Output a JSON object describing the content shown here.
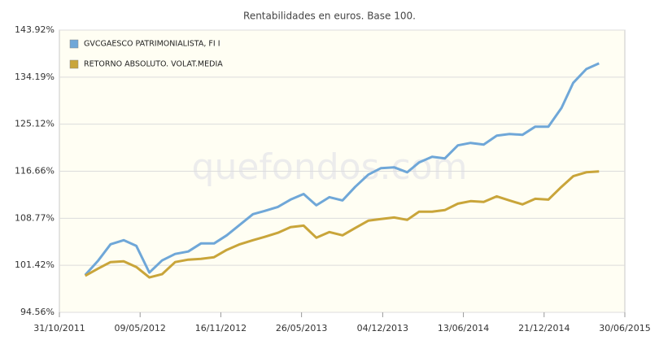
{
  "chart_data": {
    "type": "line",
    "title": "Rentabilidades en euros. Base 100.",
    "watermark": "quefondos.com",
    "yscale": "log",
    "grid": true,
    "legend": "top-left",
    "x": [
      "31/12/2011",
      "31/01/2012",
      "29/02/2012",
      "31/03/2012",
      "30/04/2012",
      "31/05/2012",
      "30/06/2012",
      "31/07/2012",
      "31/08/2012",
      "30/09/2012",
      "31/10/2012",
      "30/11/2012",
      "31/12/2012",
      "31/01/2013",
      "28/02/2013",
      "31/03/2013",
      "30/04/2013",
      "31/05/2013",
      "30/06/2013",
      "31/07/2013",
      "31/08/2013",
      "30/09/2013",
      "31/10/2013",
      "30/11/2013",
      "31/12/2013",
      "31/01/2014",
      "28/02/2014",
      "31/03/2014",
      "30/04/2014",
      "31/05/2014",
      "30/06/2014",
      "31/07/2014",
      "31/08/2014",
      "30/09/2014",
      "31/10/2014",
      "30/11/2014",
      "31/12/2014",
      "31/01/2015",
      "28/02/2015",
      "31/03/2015",
      "30/04/2015"
    ],
    "xlim": [
      "31/10/2011",
      "30/06/2015"
    ],
    "xticks": [
      "31/10/2011",
      "09/05/2012",
      "16/11/2012",
      "26/05/2013",
      "04/12/2013",
      "13/06/2014",
      "21/12/2014",
      "30/06/2015"
    ],
    "ylim": [
      94.56,
      143.92
    ],
    "yticks": [
      {
        "value": 94.56,
        "label": "94.56%"
      },
      {
        "value": 101.42,
        "label": "101.42%"
      },
      {
        "value": 108.77,
        "label": "108.77%"
      },
      {
        "value": 116.66,
        "label": "116.66%"
      },
      {
        "value": 125.12,
        "label": "125.12%"
      },
      {
        "value": 134.19,
        "label": "134.19%"
      },
      {
        "value": 143.92,
        "label": "143.92%"
      }
    ],
    "series": [
      {
        "name": "GVCGAESCO PATRIMONIALISTA, FI I",
        "color": "#6fa7d8",
        "values": [
          99.96,
          102.15,
          104.64,
          105.28,
          104.4,
          100.32,
          102.15,
          103.14,
          103.52,
          104.77,
          104.77,
          106.05,
          107.73,
          109.43,
          109.96,
          110.62,
          111.83,
          112.77,
          110.89,
          112.24,
          111.7,
          113.98,
          116.07,
          117.19,
          117.34,
          116.48,
          118.18,
          119.19,
          118.9,
          121.24,
          121.68,
          121.38,
          123.01,
          123.3,
          123.16,
          124.66,
          124.66,
          128.17,
          133.06,
          135.82,
          136.97
        ]
      },
      {
        "name": "RETORNO ABSOLUTO. VOLAT.MEDIA",
        "color": "#c9a53a",
        "values": [
          99.84,
          100.93,
          101.91,
          102.03,
          101.17,
          99.6,
          100.08,
          101.91,
          102.28,
          102.4,
          102.65,
          103.77,
          104.64,
          105.28,
          105.8,
          106.44,
          107.33,
          107.59,
          105.67,
          106.56,
          106.05,
          107.21,
          108.38,
          108.64,
          108.9,
          108.51,
          109.83,
          109.83,
          110.1,
          111.16,
          111.57,
          111.44,
          112.38,
          111.7,
          111.03,
          111.97,
          111.83,
          113.98,
          115.8,
          116.48,
          116.62
        ]
      }
    ]
  }
}
